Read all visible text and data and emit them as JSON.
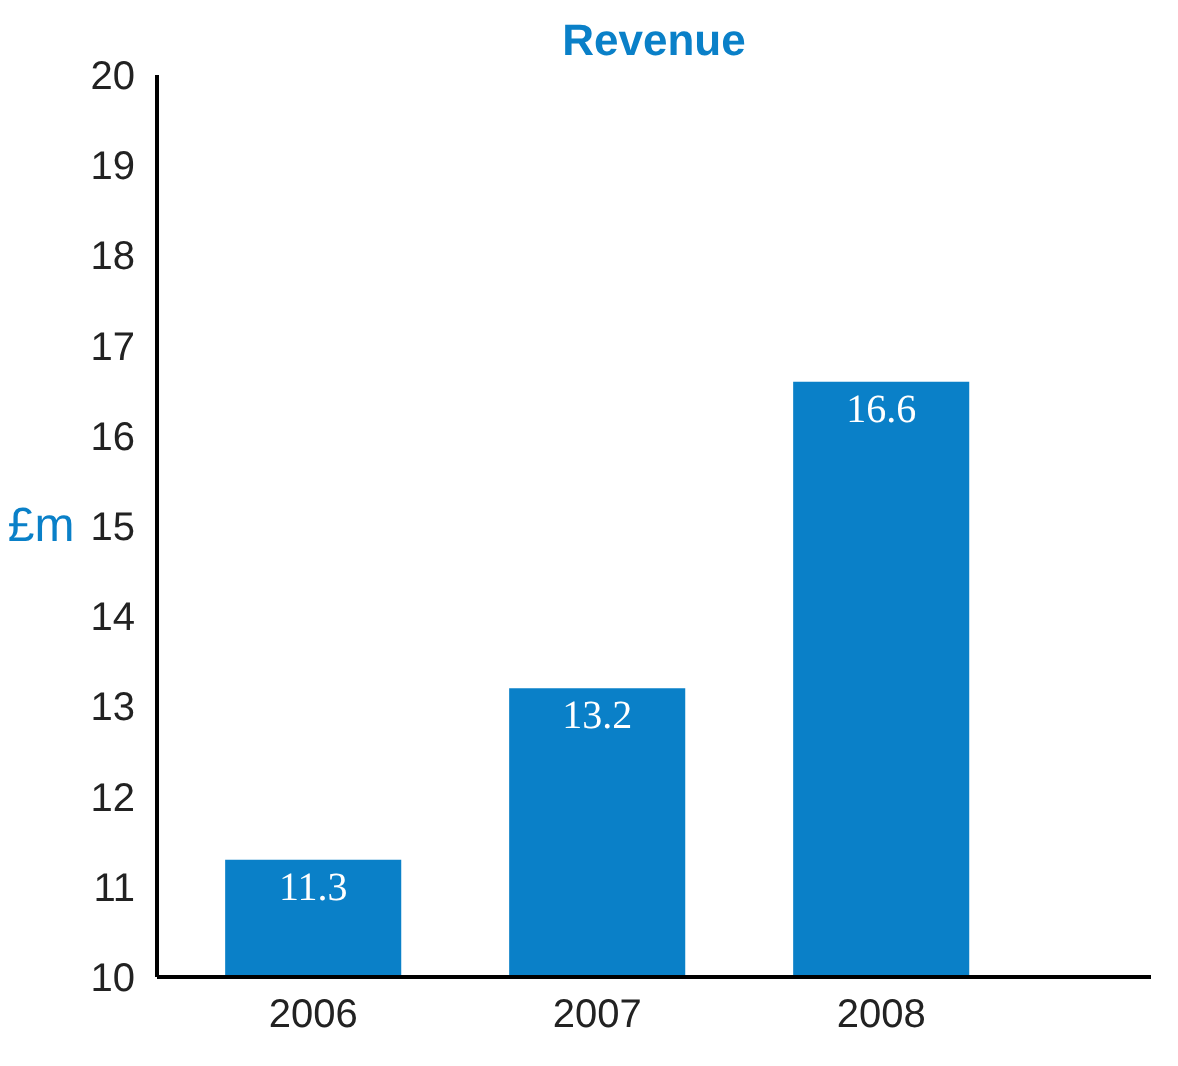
{
  "chart_data": {
    "type": "bar",
    "title": "Revenue",
    "ylabel": "£m",
    "categories": [
      "2006",
      "2007",
      "2008"
    ],
    "values": [
      11.3,
      13.2,
      16.6
    ],
    "color": "#0a80c8",
    "ylim": [
      10,
      20
    ],
    "yticks": [
      10,
      11,
      12,
      13,
      14,
      15,
      16,
      17,
      18,
      19,
      20
    ],
    "data_labels": true,
    "grid": false
  }
}
